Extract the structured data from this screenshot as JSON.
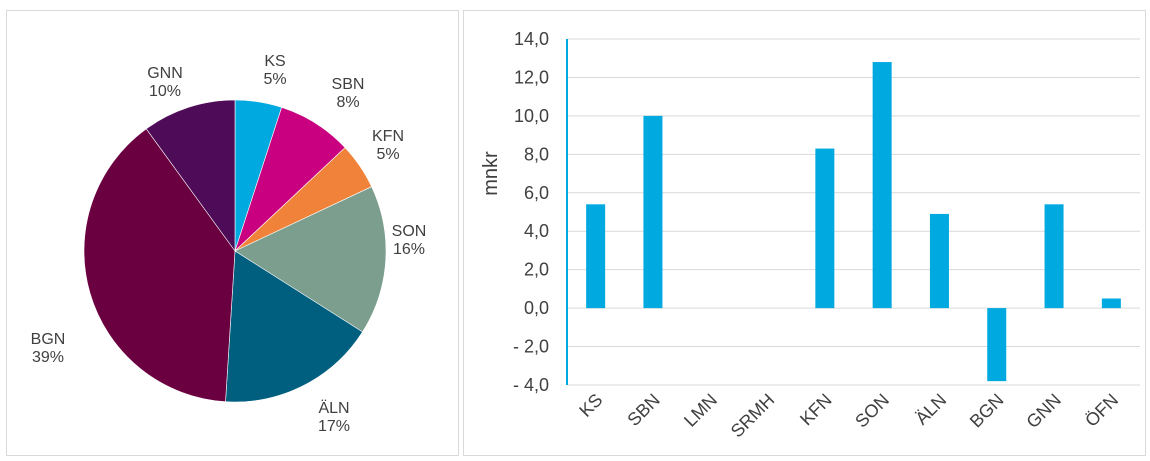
{
  "chart_data": [
    {
      "type": "pie",
      "slices": [
        {
          "label": "KS",
          "pct_label": "5%",
          "value": 5,
          "color": "#00a9e0"
        },
        {
          "label": "SBN",
          "pct_label": "8%",
          "value": 8,
          "color": "#c9007f"
        },
        {
          "label": "KFN",
          "pct_label": "5%",
          "value": 5,
          "color": "#f0823a"
        },
        {
          "label": "SON",
          "pct_label": "16%",
          "value": 16,
          "color": "#7b9e8e"
        },
        {
          "label": "ÄLN",
          "pct_label": "17%",
          "value": 17,
          "color": "#005f7f"
        },
        {
          "label": "BGN",
          "pct_label": "39%",
          "value": 39,
          "color": "#6b0040"
        },
        {
          "label": "GNN",
          "pct_label": "10%",
          "value": 10,
          "color": "#4e0b57"
        }
      ]
    },
    {
      "type": "bar",
      "categories": [
        "KS",
        "SBN",
        "LMN",
        "SRMH",
        "KFN",
        "SON",
        "ÄLN",
        "BGN",
        "GNN",
        "ÖFN"
      ],
      "values": [
        5.4,
        10.0,
        0,
        0,
        8.3,
        12.8,
        4.9,
        -3.8,
        5.4,
        0.5
      ],
      "ylabel": "mnkr",
      "ylim": [
        -4.0,
        14.0
      ],
      "yticks": [
        "14,0",
        "12,0",
        "10,0",
        "8,0",
        "6,0",
        "4,0",
        "2,0",
        "0,0",
        "- 2,0",
        "- 4,0"
      ],
      "ytick_values": [
        14,
        12,
        10,
        8,
        6,
        4,
        2,
        0,
        -2,
        -4
      ],
      "grid": true,
      "bar_color": "#00a9e0"
    }
  ]
}
